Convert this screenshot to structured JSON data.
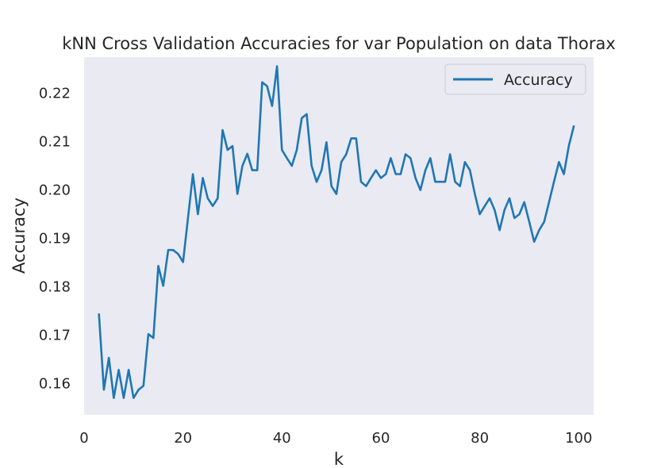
{
  "chart_data": {
    "type": "line",
    "title": "kNN Cross Validation Accuracies for var Population on data Thorax",
    "xlabel": "k",
    "ylabel": "Accuracy",
    "xlim": [
      0,
      103
    ],
    "ylim": [
      0.1535,
      0.2275
    ],
    "xticks": [
      0,
      20,
      40,
      60,
      80,
      100
    ],
    "yticks": [
      0.16,
      0.17,
      0.18,
      0.19,
      0.2,
      0.21,
      0.22
    ],
    "ytick_labels": [
      "0.16",
      "0.17",
      "0.18",
      "0.19",
      "0.20",
      "0.21",
      "0.22"
    ],
    "grid": false,
    "legend_position": "top-right",
    "background_color": "#eaeaf2",
    "series": [
      {
        "name": "Accuracy",
        "color": "#1f77b4",
        "x": [
          3,
          4,
          5,
          6,
          7,
          8,
          9,
          10,
          11,
          12,
          13,
          14,
          15,
          16,
          17,
          18,
          19,
          20,
          21,
          22,
          23,
          24,
          25,
          26,
          27,
          28,
          29,
          30,
          31,
          32,
          33,
          34,
          35,
          36,
          37,
          38,
          39,
          40,
          41,
          42,
          43,
          44,
          45,
          46,
          47,
          48,
          49,
          50,
          51,
          52,
          53,
          54,
          55,
          56,
          57,
          58,
          59,
          60,
          61,
          62,
          63,
          64,
          65,
          66,
          67,
          68,
          69,
          70,
          71,
          72,
          73,
          74,
          75,
          76,
          77,
          78,
          79,
          80,
          81,
          82,
          83,
          84,
          85,
          86,
          87,
          88,
          89,
          90,
          91,
          92,
          93,
          94,
          95,
          96,
          97,
          98,
          99
        ],
        "y": [
          0.1743,
          0.1587,
          0.1653,
          0.157,
          0.1628,
          0.157,
          0.1628,
          0.157,
          0.1587,
          0.1595,
          0.1702,
          0.1694,
          0.1843,
          0.1802,
          0.1876,
          0.1876,
          0.1868,
          0.1851,
          0.1942,
          0.2033,
          0.195,
          0.2025,
          0.1983,
          0.1967,
          0.1983,
          0.2124,
          0.2083,
          0.2091,
          0.1992,
          0.205,
          0.2075,
          0.2041,
          0.2041,
          0.2223,
          0.2215,
          0.2174,
          0.2256,
          0.2083,
          0.2066,
          0.205,
          0.2083,
          0.2149,
          0.2157,
          0.205,
          0.2017,
          0.2041,
          0.2099,
          0.2008,
          0.1992,
          0.2058,
          0.2074,
          0.2107,
          0.2107,
          0.2017,
          0.2008,
          0.2025,
          0.2041,
          0.2025,
          0.2033,
          0.2066,
          0.2033,
          0.2033,
          0.2074,
          0.2066,
          0.2025,
          0.2,
          0.2041,
          0.2066,
          0.2017,
          0.2017,
          0.2017,
          0.2074,
          0.2017,
          0.2008,
          0.2058,
          0.2041,
          0.1992,
          0.195,
          0.1967,
          0.1983,
          0.1959,
          0.1917,
          0.1959,
          0.1983,
          0.1942,
          0.195,
          0.1975,
          0.1934,
          0.1893,
          0.1917,
          0.1934,
          0.1975,
          0.2017,
          0.2058,
          0.2033,
          0.2091,
          0.2132
        ]
      }
    ]
  }
}
